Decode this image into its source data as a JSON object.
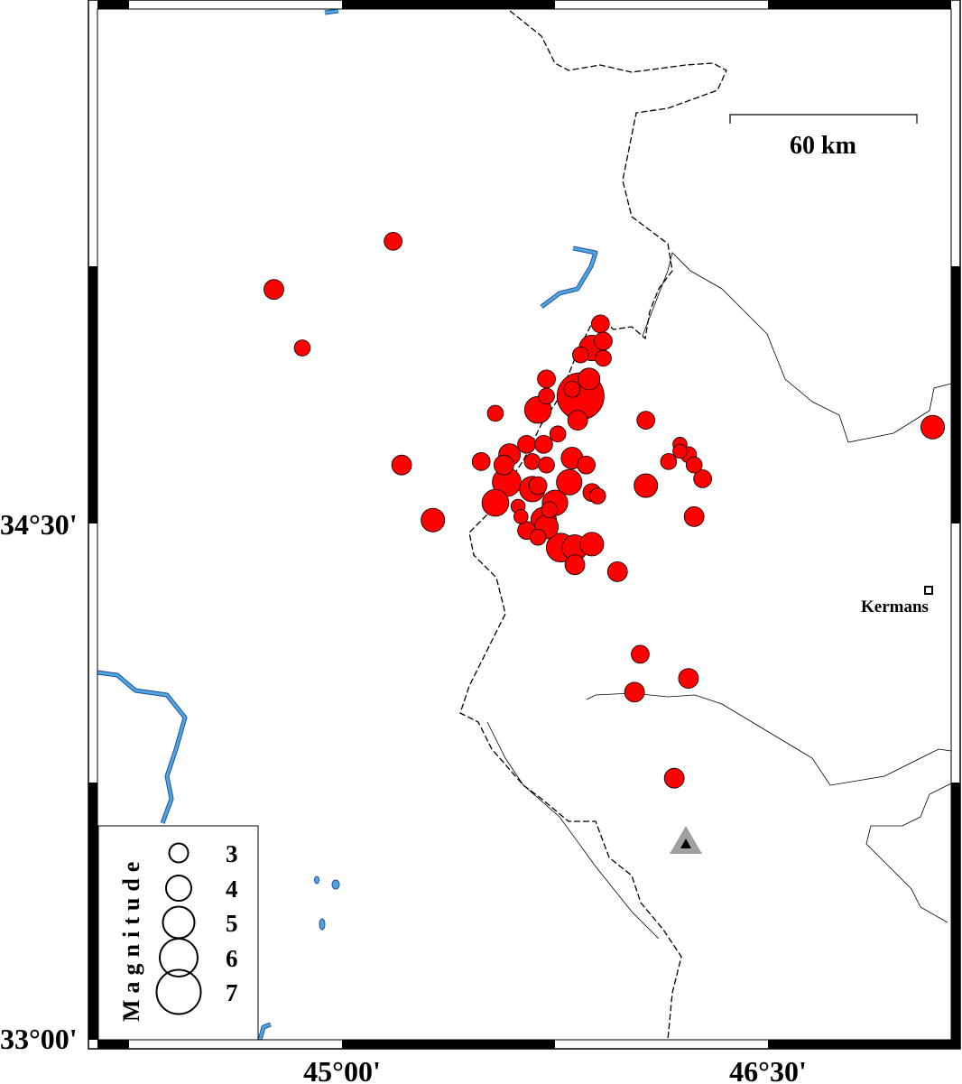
{
  "map": {
    "axes": {
      "lon_ticks": [
        {
          "value": 45.0,
          "label": "45°00'"
        },
        {
          "value": 46.5,
          "label": "46°30'"
        }
      ],
      "lat_ticks": [
        {
          "value": 34.5,
          "label": "34°30'"
        },
        {
          "value": 33.0,
          "label": "33°00'"
        }
      ]
    },
    "scale_bar": {
      "label": "60 km",
      "length_km": 60
    },
    "city": {
      "name": "Kermanshah",
      "visible_label": "Kermans",
      "lon": 47.07,
      "lat": 34.31,
      "icon": "square-marker-icon"
    },
    "station": {
      "lon": 46.21,
      "lat": 33.57,
      "icon": "triangle-station-icon"
    },
    "legend": {
      "title": "Magnitude",
      "entries": [
        {
          "mag": 3,
          "label": "3"
        },
        {
          "mag": 4,
          "label": "4"
        },
        {
          "mag": 5,
          "label": "5"
        },
        {
          "mag": 6,
          "label": "6"
        },
        {
          "mag": 7,
          "label": "7"
        }
      ]
    },
    "colors": {
      "event_fill": "#ff0000",
      "water": "#4da6e0",
      "water_edge": "#1f4fa0",
      "station": "#a0a0a0"
    },
    "events": [
      [
        45.18,
        35.32,
        2.7
      ],
      [
        44.76,
        35.18,
        3.0
      ],
      [
        44.86,
        35.01,
        2.4
      ],
      [
        45.91,
        35.08,
        2.7
      ],
      [
        45.92,
        35.03,
        2.7
      ],
      [
        45.88,
        35.01,
        3.9
      ],
      [
        45.84,
        34.99,
        2.4
      ],
      [
        45.92,
        34.98,
        2.4
      ],
      [
        45.87,
        34.92,
        3.3
      ],
      [
        45.84,
        34.87,
        7.3
      ],
      [
        45.81,
        34.89,
        2.4
      ],
      [
        45.72,
        34.92,
        2.7
      ],
      [
        45.72,
        34.87,
        2.4
      ],
      [
        45.69,
        34.83,
        4.1
      ],
      [
        45.83,
        34.8,
        3.0
      ],
      [
        45.54,
        34.82,
        2.4
      ],
      [
        45.76,
        34.76,
        2.4
      ],
      [
        46.07,
        34.8,
        2.7
      ],
      [
        45.21,
        34.67,
        3.0
      ],
      [
        45.49,
        34.68,
        2.7
      ],
      [
        45.59,
        34.7,
        3.3
      ],
      [
        45.65,
        34.73,
        2.7
      ],
      [
        45.71,
        34.73,
        2.7
      ],
      [
        45.57,
        34.67,
        3.0
      ],
      [
        45.67,
        34.68,
        2.4
      ],
      [
        45.72,
        34.67,
        2.4
      ],
      [
        45.81,
        34.69,
        3.3
      ],
      [
        45.86,
        34.67,
        2.7
      ],
      [
        45.58,
        34.62,
        4.4
      ],
      [
        45.67,
        34.6,
        3.9
      ],
      [
        45.69,
        34.61,
        2.7
      ],
      [
        45.8,
        34.62,
        3.9
      ],
      [
        45.88,
        34.59,
        2.7
      ],
      [
        45.9,
        34.58,
        2.4
      ],
      [
        45.54,
        34.56,
        4.1
      ],
      [
        45.62,
        34.55,
        2.1
      ],
      [
        45.63,
        34.52,
        2.1
      ],
      [
        45.75,
        34.56,
        3.9
      ],
      [
        45.73,
        34.54,
        2.4
      ],
      [
        45.71,
        34.51,
        3.9
      ],
      [
        45.65,
        34.48,
        2.7
      ],
      [
        45.69,
        34.46,
        2.4
      ],
      [
        45.72,
        34.49,
        3.6
      ],
      [
        45.77,
        34.43,
        4.4
      ],
      [
        45.82,
        34.43,
        3.9
      ],
      [
        45.82,
        34.38,
        3.0
      ],
      [
        45.88,
        34.44,
        3.6
      ],
      [
        45.97,
        34.36,
        3.0
      ],
      [
        46.07,
        34.61,
        3.6
      ],
      [
        46.19,
        34.73,
        2.1
      ],
      [
        46.19,
        34.71,
        2.1
      ],
      [
        46.15,
        34.68,
        2.4
      ],
      [
        46.22,
        34.7,
        2.4
      ],
      [
        46.24,
        34.67,
        2.4
      ],
      [
        46.27,
        34.63,
        2.7
      ],
      [
        46.24,
        34.52,
        3.0
      ],
      [
        45.32,
        34.51,
        3.6
      ],
      [
        46.05,
        34.12,
        2.7
      ],
      [
        46.03,
        34.01,
        3.0
      ],
      [
        46.22,
        34.05,
        3.0
      ],
      [
        46.17,
        33.76,
        3.0
      ],
      [
        47.08,
        34.78,
        3.6
      ]
    ]
  }
}
